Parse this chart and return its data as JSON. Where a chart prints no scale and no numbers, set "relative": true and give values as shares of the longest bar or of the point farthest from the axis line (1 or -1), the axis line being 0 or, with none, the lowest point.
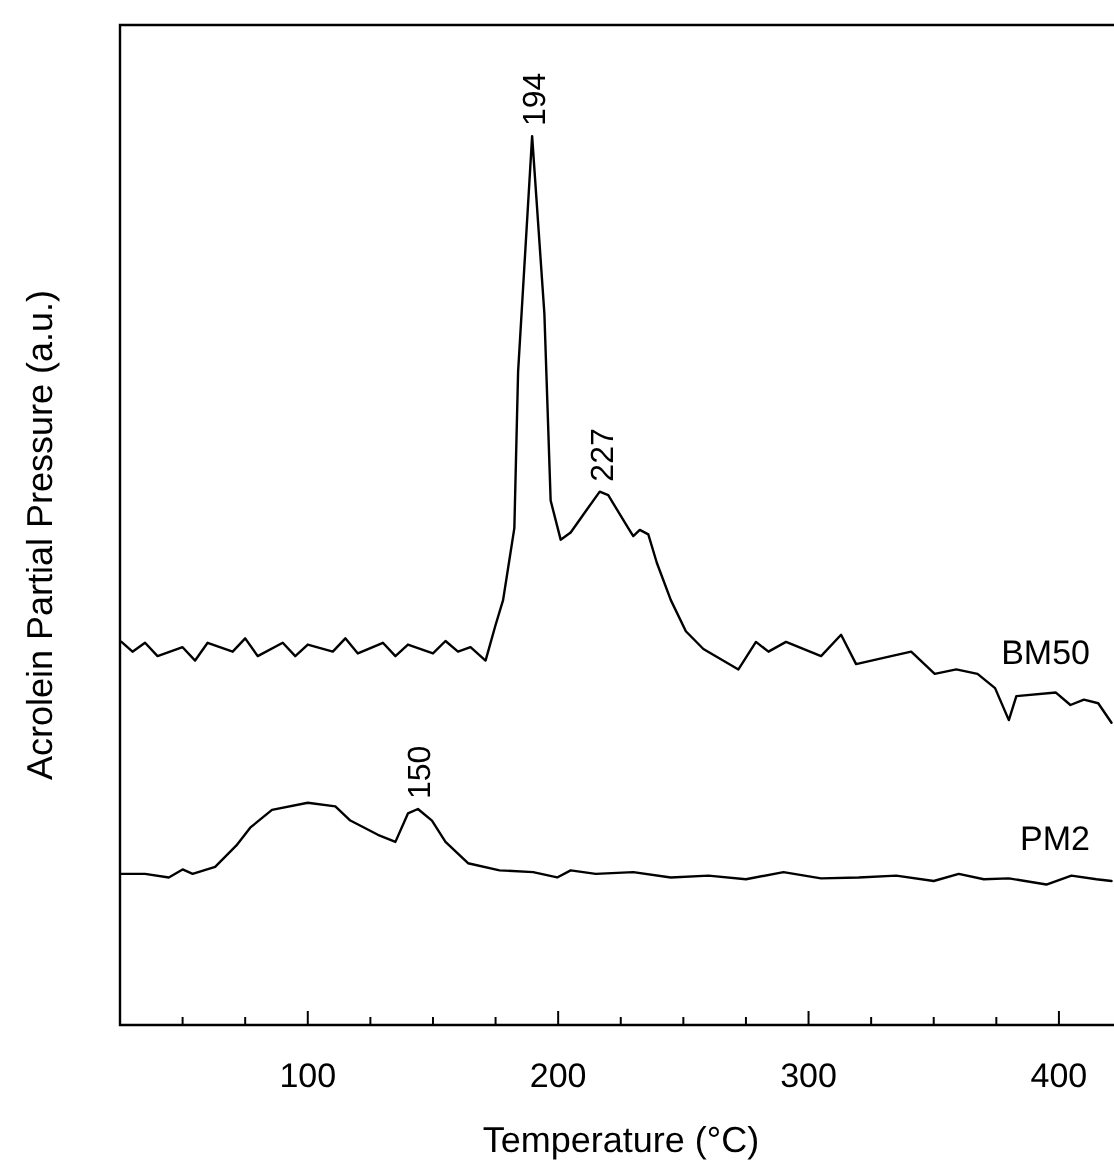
{
  "chart_data": {
    "type": "line",
    "relative": true,
    "xlabel": "Temperature (°C)",
    "ylabel": "Acrolein Partial Pressure (a.u.)",
    "xlim": [
      25,
      422
    ],
    "xticks": [
      {
        "value": 50,
        "label": null
      },
      {
        "value": 75,
        "label": null
      },
      100,
      {
        "value": 125,
        "label": null
      },
      {
        "value": 150,
        "label": null
      },
      {
        "value": 175,
        "label": null
      },
      200,
      {
        "value": 225,
        "label": null
      },
      {
        "value": 250,
        "label": null
      },
      {
        "value": 275,
        "label": null
      },
      300,
      {
        "value": 325,
        "label": null
      },
      {
        "value": 350,
        "label": null
      },
      {
        "value": 375,
        "label": null
      },
      400
    ],
    "grid": false,
    "marker": "none",
    "line_style": "solid",
    "series": [
      {
        "name": "BM50",
        "color": "#000000",
        "x": [
          25.6,
          30,
          35,
          40,
          50,
          55,
          60,
          70,
          75,
          80,
          90,
          95,
          100,
          110,
          115,
          120,
          130,
          135,
          140,
          150,
          155,
          160,
          165,
          171,
          175,
          178,
          182.5,
          184,
          189.6,
          194.5,
          197,
          201,
          205,
          211,
          216.6,
          220,
          228,
          230,
          232.6,
          236,
          239.4,
          245,
          251,
          258,
          272,
          279,
          284,
          291,
          305,
          313,
          319,
          333,
          341,
          350.4,
          359,
          367.5,
          374.5,
          380,
          383,
          398.8,
          404.6,
          410,
          415.7,
          421
        ],
        "values": [
          0.431,
          0.42,
          0.43,
          0.415,
          0.425,
          0.41,
          0.43,
          0.42,
          0.435,
          0.415,
          0.43,
          0.415,
          0.428,
          0.42,
          0.435,
          0.418,
          0.43,
          0.415,
          0.428,
          0.418,
          0.432,
          0.42,
          0.425,
          0.41,
          0.45,
          0.478,
          0.559,
          0.735,
          1.0,
          0.8,
          0.59,
          0.546,
          0.554,
          0.578,
          0.6,
          0.596,
          0.559,
          0.55,
          0.557,
          0.552,
          0.52,
          0.478,
          0.443,
          0.423,
          0.4,
          0.431,
          0.42,
          0.431,
          0.415,
          0.439,
          0.406,
          0.415,
          0.42,
          0.395,
          0.4,
          0.395,
          0.379,
          0.343,
          0.37,
          0.374,
          0.36,
          0.366,
          0.362,
          0.34
        ]
      },
      {
        "name": "PM2",
        "color": "#000000",
        "x": [
          25.6,
          35,
          44.5,
          50,
          54,
          63,
          71.5,
          77,
          85.7,
          100,
          111,
          117,
          128,
          135,
          140,
          144,
          149.6,
          155,
          164,
          176.6,
          190,
          199.6,
          205,
          215,
          230,
          245,
          260,
          275,
          290,
          305,
          320,
          335,
          350,
          360,
          370,
          380,
          395,
          405,
          415,
          421
        ],
        "values": [
          0.17,
          0.17,
          0.166,
          0.175,
          0.17,
          0.178,
          0.202,
          0.222,
          0.242,
          0.25,
          0.246,
          0.23,
          0.214,
          0.206,
          0.238,
          0.243,
          0.23,
          0.206,
          0.182,
          0.174,
          0.172,
          0.166,
          0.174,
          0.17,
          0.172,
          0.166,
          0.168,
          0.164,
          0.172,
          0.165,
          0.166,
          0.168,
          0.162,
          0.17,
          0.164,
          0.165,
          0.158,
          0.168,
          0.164,
          0.162
        ]
      }
    ],
    "annotations": [
      {
        "text": "194",
        "x": 190,
        "y": 1.0
      },
      {
        "text": "227",
        "x": 217,
        "y": 0.6
      },
      {
        "text": "150",
        "x": 144,
        "y": 0.243
      }
    ]
  }
}
